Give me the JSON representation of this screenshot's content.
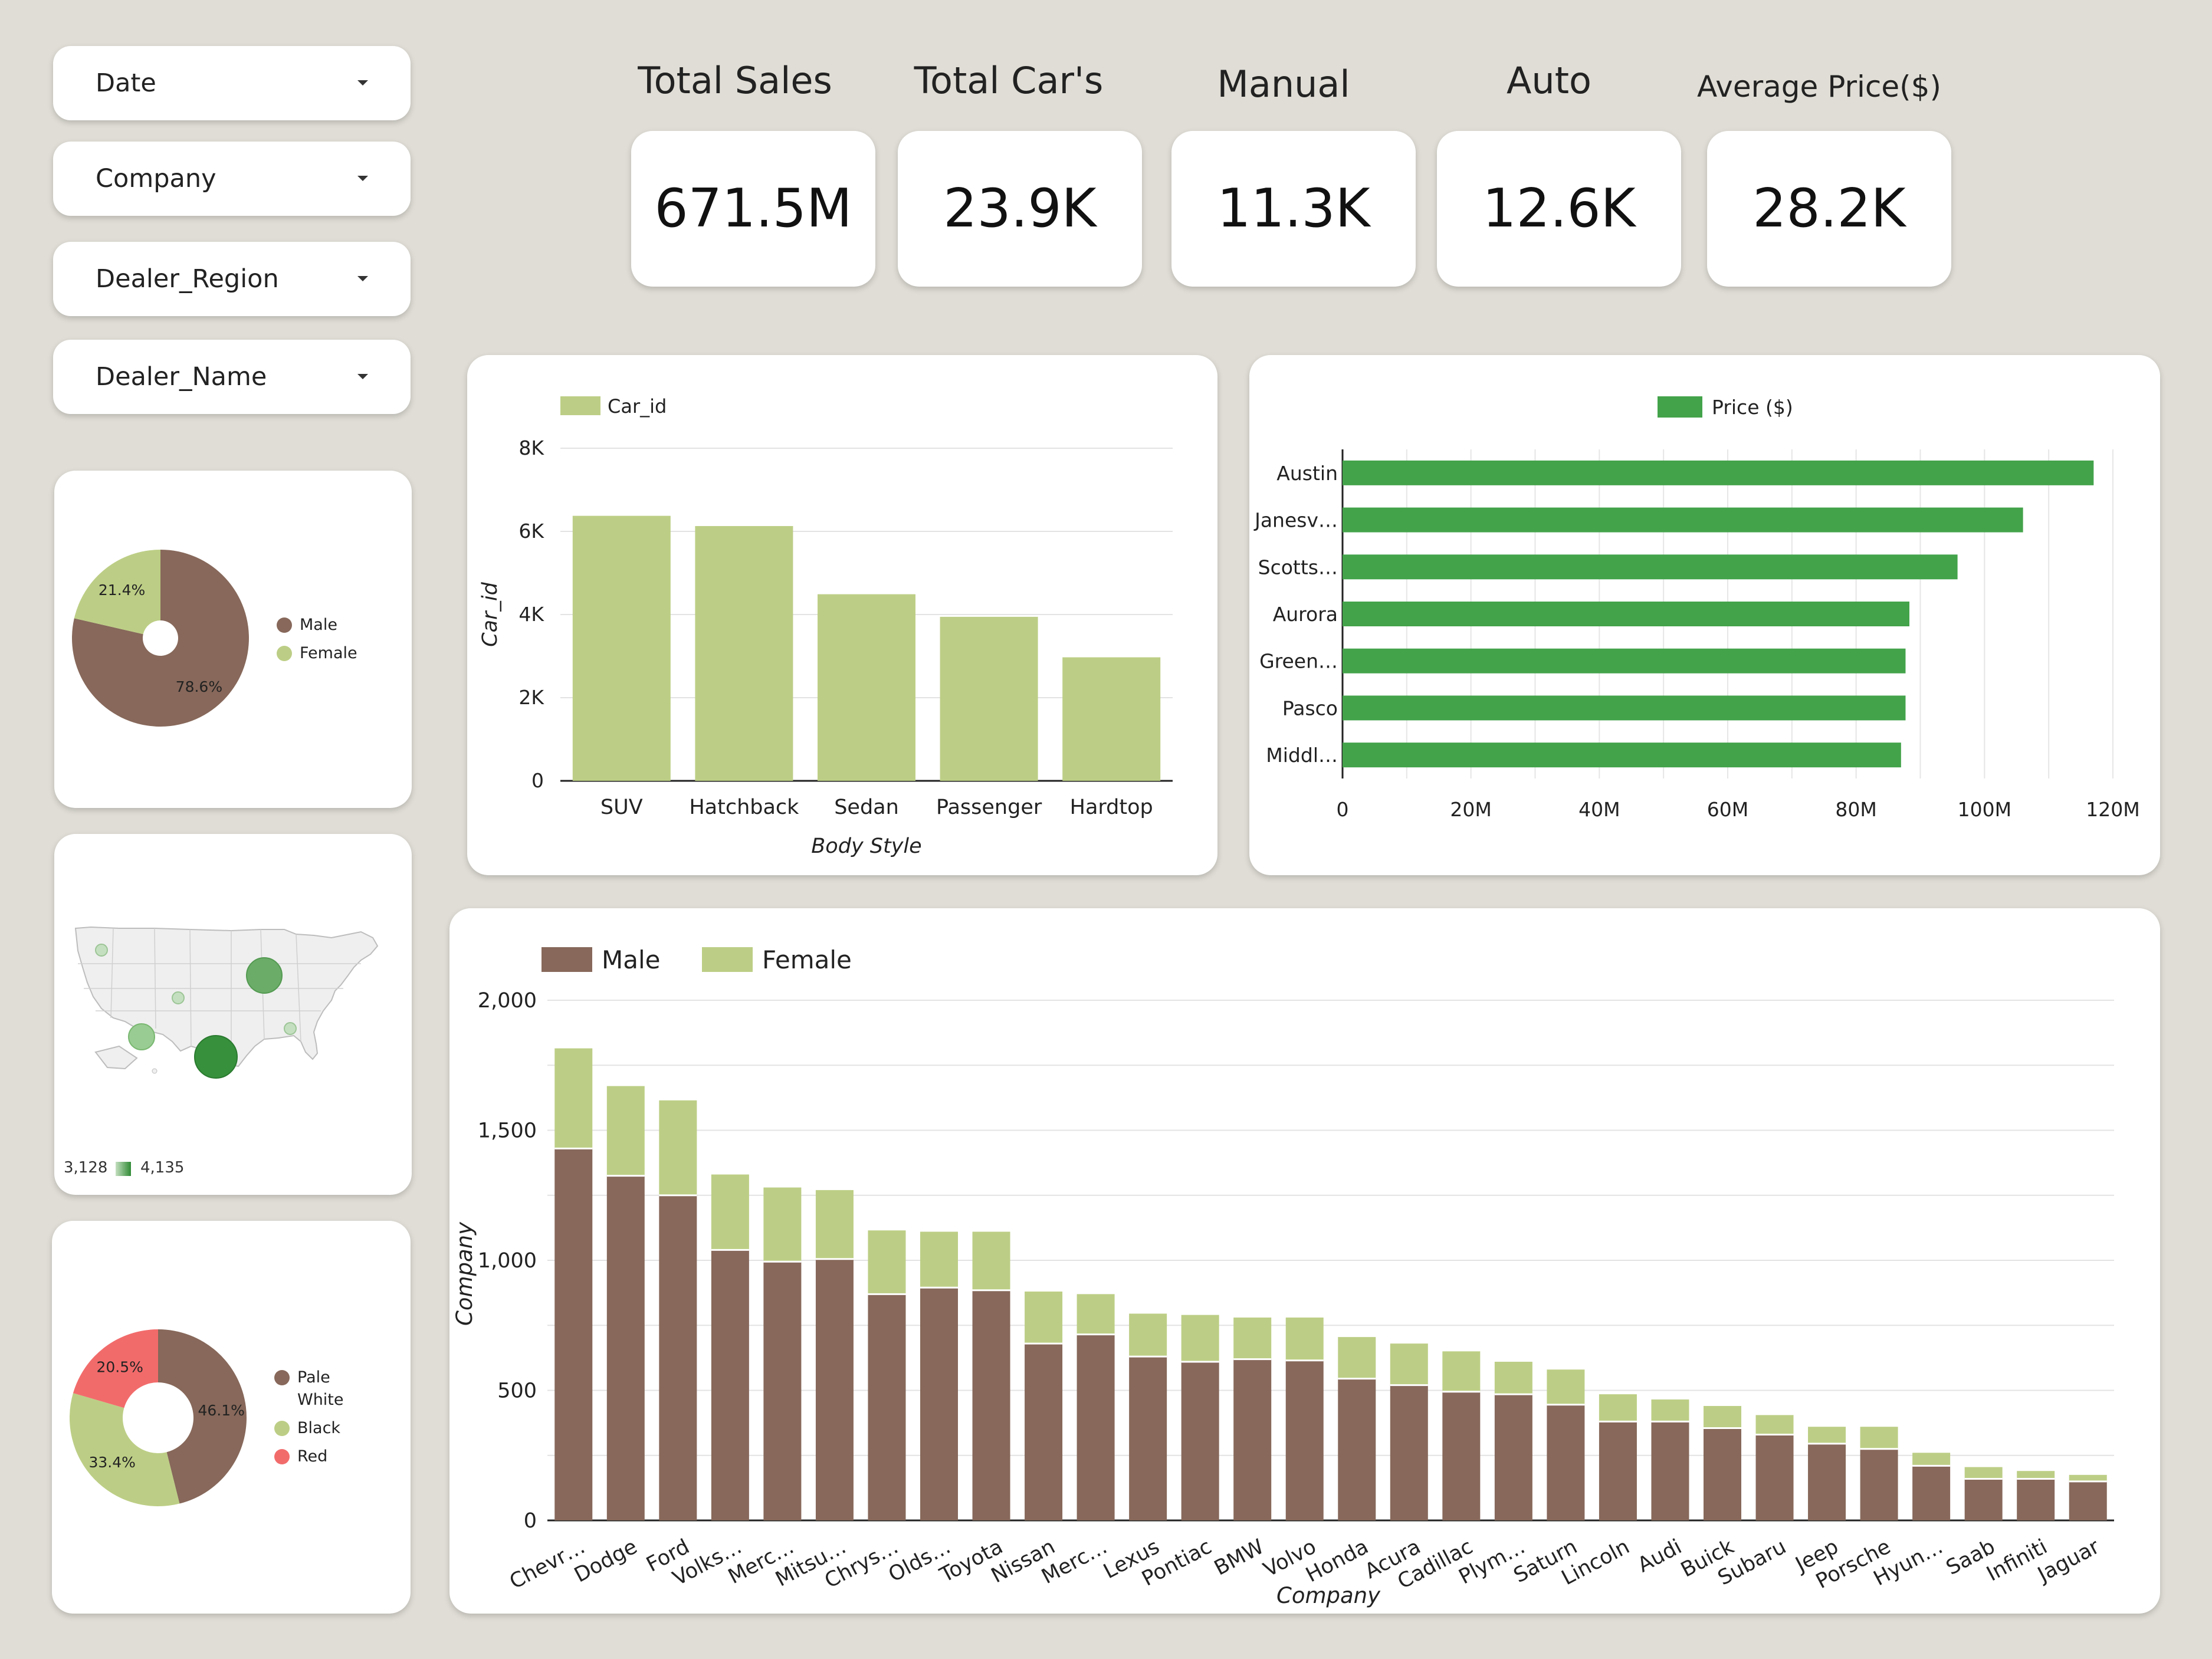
{
  "filters": [
    "Date",
    "Company",
    "Dealer_Region",
    "Dealer_Name"
  ],
  "kpis": [
    {
      "title": "Total Sales",
      "value": "671.5M"
    },
    {
      "title": "Total Car's",
      "value": "23.9K"
    },
    {
      "title": "Manual",
      "value": "11.3K"
    },
    {
      "title": "Auto",
      "value": "12.6K"
    },
    {
      "title": "Average Price($)",
      "value": "28.2K"
    }
  ],
  "colors": {
    "brown": "#87685a",
    "light_green": "#bcce85",
    "green": "#43a34a",
    "red": "#f26b6b",
    "background": "#dfddd5"
  },
  "map": {
    "legend_min": "3,128",
    "legend_max": "4,135",
    "icon": "us-map-icon"
  },
  "chart_data": [
    {
      "type": "pie",
      "labels": [
        "Male",
        "Female"
      ],
      "values": [
        78.6,
        21.4
      ],
      "value_labels": [
        "78.6%",
        "21.4%"
      ],
      "colors": [
        "#87685a",
        "#bcce85"
      ],
      "donut": true,
      "legend": "right"
    },
    {
      "type": "pie",
      "labels": [
        "Pale White",
        "Black",
        "Red"
      ],
      "legend_lines": [
        [
          "Pale",
          "White"
        ],
        [
          "Black"
        ],
        [
          "Red"
        ]
      ],
      "values": [
        46.1,
        33.4,
        20.5
      ],
      "value_labels": [
        "46.1%",
        "33.4%",
        "20.5%"
      ],
      "colors": [
        "#87685a",
        "#bcce85",
        "#f26b6b"
      ],
      "donut": true,
      "legend": "right"
    },
    {
      "type": "bar",
      "categories": [
        "SUV",
        "Hatchback",
        "Sedan",
        "Passenger",
        "Hardtop"
      ],
      "values": [
        6374,
        6128,
        4488,
        3945,
        2971
      ],
      "series_name": "Car_id",
      "xlabel": "Body Style",
      "ylabel": "Car_id",
      "ylim": [
        0,
        8000
      ],
      "yticks": [
        0,
        2000,
        4000,
        6000,
        8000
      ],
      "ytick_labels": [
        "0",
        "2K",
        "4K",
        "6K",
        "8K"
      ],
      "grid": true,
      "legend": "top-left"
    },
    {
      "type": "bar",
      "orientation": "horizontal",
      "categories": [
        "Austin",
        "Janesv…",
        "Scotts…",
        "Aurora",
        "Green…",
        "Pasco",
        "Middl…"
      ],
      "values": [
        117000000,
        106000000,
        95800000,
        88300000,
        87700000,
        87700000,
        87000000
      ],
      "series_name": "Price ($)",
      "xlim": [
        0,
        120000000
      ],
      "xticks": [
        0,
        20000000,
        40000000,
        60000000,
        80000000,
        100000000,
        120000000
      ],
      "xtick_labels": [
        "0",
        "20M",
        "40M",
        "60M",
        "80M",
        "100M",
        "120M"
      ],
      "grid": true,
      "legend": "top"
    },
    {
      "type": "bar",
      "stacked": true,
      "categories": [
        "Chevr…",
        "Dodge",
        "Ford",
        "Volks…",
        "Merc…",
        "Mitsu…",
        "Chrys…",
        "Olds…",
        "Toyota",
        "Nissan",
        "Merc…",
        "Lexus",
        "Pontiac",
        "BMW",
        "Volvo",
        "Honda",
        "Acura",
        "Cadillac",
        "Plym…",
        "Saturn",
        "Lincoln",
        "Audi",
        "Buick",
        "Subaru",
        "Jeep",
        "Porsche",
        "Hyun…",
        "Saab",
        "Infiniti",
        "Jaguar"
      ],
      "series": [
        {
          "name": "Male",
          "color": "#87685a",
          "values": [
            1430,
            1325,
            1250,
            1040,
            995,
            1005,
            870,
            895,
            885,
            680,
            715,
            630,
            610,
            620,
            615,
            545,
            520,
            495,
            485,
            445,
            380,
            380,
            355,
            330,
            295,
            275,
            210,
            160,
            160,
            150
          ]
        },
        {
          "name": "Female",
          "color": "#bcce85",
          "values": [
            385,
            345,
            365,
            290,
            285,
            265,
            245,
            215,
            225,
            200,
            155,
            165,
            180,
            160,
            165,
            160,
            160,
            155,
            125,
            135,
            105,
            85,
            85,
            75,
            65,
            85,
            50,
            45,
            30,
            25
          ]
        }
      ],
      "xlabel": "Company",
      "ylabel": "Company",
      "ylim": [
        0,
        2000
      ],
      "yticks": [
        0,
        500,
        1000,
        1500,
        2000
      ],
      "ytick_labels": [
        "0",
        "500",
        "1,000",
        "1,500",
        "2,000"
      ],
      "grid": true,
      "legend": "top-left"
    }
  ]
}
